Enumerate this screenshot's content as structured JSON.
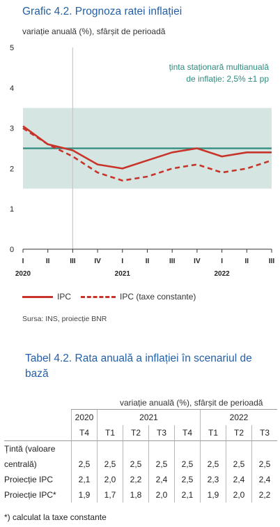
{
  "chart_data": {
    "type": "line",
    "title": "Grafic 4.2. Prognoza ratei inflației",
    "ylabel": "variație anuală (%), sfârșit de perioadă",
    "ylim": [
      0,
      5
    ],
    "yticks": [
      "0",
      "1",
      "2",
      "3",
      "4",
      "5"
    ],
    "x_quarter_labels": [
      "I",
      "II",
      "III",
      "IV",
      "I",
      "II",
      "III",
      "IV",
      "I",
      "II",
      "III"
    ],
    "x_year_labels": [
      {
        "label": "2020",
        "index": 0
      },
      {
        "label": "2021",
        "index": 4
      },
      {
        "label": "2022",
        "index": 8
      }
    ],
    "x": [
      0,
      1,
      2,
      3,
      4,
      5,
      6,
      7,
      8,
      9,
      10
    ],
    "band": {
      "low": 1.5,
      "high": 3.5,
      "color": "#d5e6e2"
    },
    "target_line": {
      "value": 2.5,
      "color": "#2e8a7e"
    },
    "band_label_line1": "ținta staționară multianuală",
    "band_label_line2": "de inflație: 2,5% ±1 pp",
    "vertical_marker_index": 2,
    "series": [
      {
        "name": "IPC",
        "style": "solid",
        "color": "#c9342a",
        "values": [
          3.05,
          2.6,
          2.45,
          2.1,
          2.0,
          2.2,
          2.4,
          2.5,
          2.3,
          2.4,
          2.4
        ]
      },
      {
        "name": "IPC (taxe constante)",
        "style": "dashed",
        "color": "#c9342a",
        "values": [
          3.0,
          2.6,
          2.3,
          1.9,
          1.7,
          1.8,
          2.0,
          2.1,
          1.9,
          2.0,
          2.2
        ]
      }
    ],
    "legend": [
      "IPC",
      "IPC (taxe constante)"
    ],
    "source": "Sursa: INS, proiecție BNR"
  },
  "table": {
    "title": "Tabel 4.2. Rata anuală a inflației în scenariul de bază",
    "unit": "variație anuală (%), sfârșit de perioadă",
    "years": [
      {
        "label": "2020",
        "span": 1
      },
      {
        "label": "2021",
        "span": 4
      },
      {
        "label": "2022",
        "span": 3
      }
    ],
    "quarters": [
      "T4",
      "T1",
      "T2",
      "T3",
      "T4",
      "T1",
      "T2",
      "T3"
    ],
    "rows": [
      {
        "label1": "Țintă (valoare",
        "label2": "centrală)",
        "values": [
          "2,5",
          "2,5",
          "2,5",
          "2,5",
          "2,5",
          "2,5",
          "2,5",
          "2,5"
        ]
      },
      {
        "label1": "Proiecție IPC",
        "values": [
          "2,1",
          "2,0",
          "2,2",
          "2,4",
          "2,5",
          "2,3",
          "2,4",
          "2,4"
        ]
      },
      {
        "label1": "Proiecție IPC*",
        "values": [
          "1,9",
          "1,7",
          "1,8",
          "2,0",
          "2,1",
          "1,9",
          "2,0",
          "2,2"
        ]
      }
    ],
    "footnote": "*) calculat la taxe constante"
  }
}
